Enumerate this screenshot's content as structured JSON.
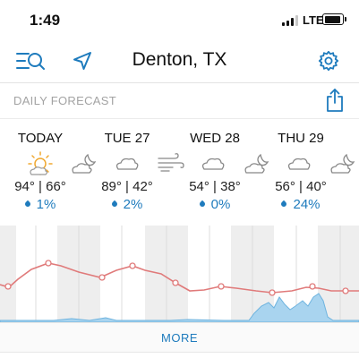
{
  "status_bar": {
    "time": "1:49",
    "network": "LTE",
    "signal_bars_active": 3,
    "signal_bars_total": 4
  },
  "header": {
    "location": "Denton, TX",
    "icons": [
      "menu-search-icon",
      "location-arrow-icon",
      "gear-icon"
    ]
  },
  "subheader": {
    "label": "DAILY FORECAST",
    "share_icon": "share-icon"
  },
  "days": [
    {
      "name": "TODAY",
      "temps": "94° | 66°",
      "precip": "1%",
      "day_icon": "sun-icon",
      "night_icon": "moon-cloud-icon"
    },
    {
      "name": "TUE 27",
      "temps": "89° | 42°",
      "precip": "2%",
      "day_icon": "cloud-icon",
      "night_icon": "wind-icon"
    },
    {
      "name": "WED 28",
      "temps": "54° | 38°",
      "precip": "0%",
      "day_icon": "cloud-icon",
      "night_icon": "moon-cloud-icon"
    },
    {
      "name": "THU 29",
      "temps": "56° | 40°",
      "precip": "24%",
      "day_icon": "cloud-icon",
      "night_icon": "moon-cloud-icon"
    }
  ],
  "more_label": "MORE",
  "colors": {
    "accent_blue": "#1e7bbd",
    "temp_line": "#e07a7a",
    "precip_fill": "#a9d4ef",
    "night_band": "#eeeeee"
  }
}
